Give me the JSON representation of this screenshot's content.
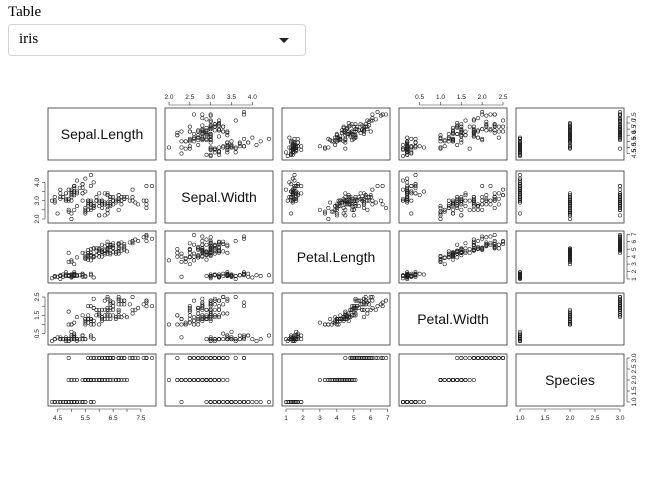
{
  "control": {
    "label": "Table",
    "selected": "iris",
    "icon": "chevron-down-icon"
  },
  "chart_data": {
    "type": "scatter-matrix",
    "variables": [
      "Sepal.Length",
      "Sepal.Width",
      "Petal.Length",
      "Petal.Width",
      "Species"
    ],
    "ranges": [
      [
        4.3,
        7.9
      ],
      [
        2.0,
        4.4
      ],
      [
        1.0,
        6.9
      ],
      [
        0.1,
        2.5
      ],
      [
        1.0,
        3.0
      ]
    ],
    "ticks": [
      [
        4.5,
        5.5,
        6.5,
        7.5
      ],
      [
        2.0,
        3.0,
        4.0
      ],
      [
        1,
        2,
        3,
        4,
        5,
        6,
        7
      ],
      [
        0.5,
        1.5,
        2.5
      ],
      [
        1.0,
        1.5,
        2.0,
        2.5,
        3.0
      ]
    ],
    "tick_labels": [
      [
        "4.5",
        "5.5",
        "6.5",
        "7.5"
      ],
      [
        "2.0",
        "3.0",
        "4.0"
      ],
      [
        "1",
        "2",
        "3",
        "4",
        "5",
        "6",
        "7"
      ],
      [
        "0.5",
        "1.5",
        "2.5"
      ],
      [
        "1.0",
        "1.5",
        "2.0",
        "2.5",
        "3.0"
      ]
    ],
    "alt_ticks": [
      [
        4.5,
        5.0,
        5.5,
        6.0,
        6.5,
        7.0,
        7.5
      ],
      [
        2.0,
        2.5,
        3.0,
        3.5,
        4.0
      ],
      [
        1,
        2,
        3,
        4,
        5,
        6,
        7
      ],
      [
        0.5,
        1.0,
        1.5,
        2.0,
        2.5
      ],
      [
        1.0,
        1.5,
        2.0,
        2.5,
        3.0
      ]
    ],
    "alt_tick_labels": [
      [
        "4.5",
        "5.0",
        "5.5",
        "6.0",
        "6.5",
        "7.0",
        "7.5"
      ],
      [
        "2.0",
        "2.5",
        "3.0",
        "3.5",
        "4.0"
      ],
      [
        "1",
        "2",
        "3",
        "4",
        "5",
        "6",
        "7"
      ],
      [
        "0.5",
        "1.0",
        "1.5",
        "2.0",
        "2.5"
      ],
      [
        "1.0",
        "1.5",
        "2.0",
        "2.5",
        "3.0"
      ]
    ],
    "data": [
      [
        5.1,
        3.5,
        1.4,
        0.2,
        1
      ],
      [
        4.9,
        3.0,
        1.4,
        0.2,
        1
      ],
      [
        4.7,
        3.2,
        1.3,
        0.2,
        1
      ],
      [
        4.6,
        3.1,
        1.5,
        0.2,
        1
      ],
      [
        5.0,
        3.6,
        1.4,
        0.2,
        1
      ],
      [
        5.4,
        3.9,
        1.7,
        0.4,
        1
      ],
      [
        4.6,
        3.4,
        1.4,
        0.3,
        1
      ],
      [
        5.0,
        3.4,
        1.5,
        0.2,
        1
      ],
      [
        4.4,
        2.9,
        1.4,
        0.2,
        1
      ],
      [
        4.9,
        3.1,
        1.5,
        0.1,
        1
      ],
      [
        5.4,
        3.7,
        1.5,
        0.2,
        1
      ],
      [
        4.8,
        3.4,
        1.6,
        0.2,
        1
      ],
      [
        4.8,
        3.0,
        1.4,
        0.1,
        1
      ],
      [
        4.3,
        3.0,
        1.1,
        0.1,
        1
      ],
      [
        5.8,
        4.0,
        1.2,
        0.2,
        1
      ],
      [
        5.7,
        4.4,
        1.5,
        0.4,
        1
      ],
      [
        5.4,
        3.9,
        1.3,
        0.4,
        1
      ],
      [
        5.1,
        3.5,
        1.4,
        0.3,
        1
      ],
      [
        5.7,
        3.8,
        1.7,
        0.3,
        1
      ],
      [
        5.1,
        3.8,
        1.5,
        0.3,
        1
      ],
      [
        5.4,
        3.4,
        1.7,
        0.2,
        1
      ],
      [
        5.1,
        3.7,
        1.5,
        0.4,
        1
      ],
      [
        4.6,
        3.6,
        1.0,
        0.2,
        1
      ],
      [
        5.1,
        3.3,
        1.7,
        0.5,
        1
      ],
      [
        4.8,
        3.4,
        1.9,
        0.2,
        1
      ],
      [
        5.0,
        3.0,
        1.6,
        0.2,
        1
      ],
      [
        5.0,
        3.4,
        1.6,
        0.4,
        1
      ],
      [
        5.2,
        3.5,
        1.5,
        0.2,
        1
      ],
      [
        5.2,
        3.4,
        1.4,
        0.2,
        1
      ],
      [
        4.7,
        3.2,
        1.6,
        0.2,
        1
      ],
      [
        4.8,
        3.1,
        1.6,
        0.2,
        1
      ],
      [
        5.4,
        3.4,
        1.5,
        0.4,
        1
      ],
      [
        5.2,
        4.1,
        1.5,
        0.1,
        1
      ],
      [
        5.5,
        4.2,
        1.4,
        0.2,
        1
      ],
      [
        4.9,
        3.1,
        1.5,
        0.2,
        1
      ],
      [
        5.0,
        3.2,
        1.2,
        0.2,
        1
      ],
      [
        5.5,
        3.5,
        1.3,
        0.2,
        1
      ],
      [
        4.9,
        3.6,
        1.4,
        0.1,
        1
      ],
      [
        4.4,
        3.0,
        1.3,
        0.2,
        1
      ],
      [
        5.1,
        3.4,
        1.5,
        0.2,
        1
      ],
      [
        5.0,
        3.5,
        1.3,
        0.3,
        1
      ],
      [
        4.5,
        2.3,
        1.3,
        0.3,
        1
      ],
      [
        4.4,
        3.2,
        1.3,
        0.2,
        1
      ],
      [
        5.0,
        3.5,
        1.6,
        0.6,
        1
      ],
      [
        5.1,
        3.8,
        1.9,
        0.4,
        1
      ],
      [
        4.8,
        3.0,
        1.4,
        0.3,
        1
      ],
      [
        5.1,
        3.8,
        1.6,
        0.2,
        1
      ],
      [
        4.6,
        3.2,
        1.4,
        0.2,
        1
      ],
      [
        5.3,
        3.7,
        1.5,
        0.2,
        1
      ],
      [
        5.0,
        3.3,
        1.4,
        0.2,
        1
      ],
      [
        7.0,
        3.2,
        4.7,
        1.4,
        2
      ],
      [
        6.4,
        3.2,
        4.5,
        1.5,
        2
      ],
      [
        6.9,
        3.1,
        4.9,
        1.5,
        2
      ],
      [
        5.5,
        2.3,
        4.0,
        1.3,
        2
      ],
      [
        6.5,
        2.8,
        4.6,
        1.5,
        2
      ],
      [
        5.7,
        2.8,
        4.5,
        1.3,
        2
      ],
      [
        6.3,
        3.3,
        4.7,
        1.6,
        2
      ],
      [
        4.9,
        2.4,
        3.3,
        1.0,
        2
      ],
      [
        6.6,
        2.9,
        4.6,
        1.3,
        2
      ],
      [
        5.2,
        2.7,
        3.9,
        1.4,
        2
      ],
      [
        5.0,
        2.0,
        3.5,
        1.0,
        2
      ],
      [
        5.9,
        3.0,
        4.2,
        1.5,
        2
      ],
      [
        6.0,
        2.2,
        4.0,
        1.0,
        2
      ],
      [
        6.1,
        2.9,
        4.7,
        1.4,
        2
      ],
      [
        5.6,
        2.9,
        3.6,
        1.3,
        2
      ],
      [
        6.7,
        3.1,
        4.4,
        1.4,
        2
      ],
      [
        5.6,
        3.0,
        4.5,
        1.5,
        2
      ],
      [
        5.8,
        2.7,
        4.1,
        1.0,
        2
      ],
      [
        6.2,
        2.2,
        4.5,
        1.5,
        2
      ],
      [
        5.6,
        2.5,
        3.9,
        1.1,
        2
      ],
      [
        5.9,
        3.2,
        4.8,
        1.8,
        2
      ],
      [
        6.1,
        2.8,
        4.0,
        1.3,
        2
      ],
      [
        6.3,
        2.5,
        4.9,
        1.5,
        2
      ],
      [
        6.1,
        2.8,
        4.7,
        1.2,
        2
      ],
      [
        6.4,
        2.9,
        4.3,
        1.3,
        2
      ],
      [
        6.6,
        3.0,
        4.4,
        1.4,
        2
      ],
      [
        6.8,
        2.8,
        4.8,
        1.4,
        2
      ],
      [
        6.7,
        3.0,
        5.0,
        1.7,
        2
      ],
      [
        6.0,
        2.9,
        4.5,
        1.5,
        2
      ],
      [
        5.7,
        2.6,
        3.5,
        1.0,
        2
      ],
      [
        5.5,
        2.4,
        3.8,
        1.1,
        2
      ],
      [
        5.5,
        2.4,
        3.7,
        1.0,
        2
      ],
      [
        5.8,
        2.7,
        3.9,
        1.2,
        2
      ],
      [
        6.0,
        2.7,
        5.1,
        1.6,
        2
      ],
      [
        5.4,
        3.0,
        4.5,
        1.5,
        2
      ],
      [
        6.0,
        3.4,
        4.5,
        1.6,
        2
      ],
      [
        6.7,
        3.1,
        4.7,
        1.5,
        2
      ],
      [
        6.3,
        2.3,
        4.4,
        1.3,
        2
      ],
      [
        5.6,
        3.0,
        4.1,
        1.3,
        2
      ],
      [
        5.5,
        2.5,
        4.0,
        1.3,
        2
      ],
      [
        5.5,
        2.6,
        4.4,
        1.2,
        2
      ],
      [
        6.1,
        3.0,
        4.6,
        1.4,
        2
      ],
      [
        5.8,
        2.6,
        4.0,
        1.2,
        2
      ],
      [
        5.0,
        2.3,
        3.3,
        1.0,
        2
      ],
      [
        5.6,
        2.7,
        4.2,
        1.3,
        2
      ],
      [
        5.7,
        3.0,
        4.2,
        1.2,
        2
      ],
      [
        5.7,
        2.9,
        4.2,
        1.3,
        2
      ],
      [
        6.2,
        2.9,
        4.3,
        1.3,
        2
      ],
      [
        5.1,
        2.5,
        3.0,
        1.1,
        2
      ],
      [
        5.7,
        2.8,
        4.1,
        1.3,
        2
      ],
      [
        6.3,
        3.3,
        6.0,
        2.5,
        3
      ],
      [
        5.8,
        2.7,
        5.1,
        1.9,
        3
      ],
      [
        7.1,
        3.0,
        5.9,
        2.1,
        3
      ],
      [
        6.3,
        2.9,
        5.6,
        1.8,
        3
      ],
      [
        6.5,
        3.0,
        5.8,
        2.2,
        3
      ],
      [
        7.6,
        3.0,
        6.6,
        2.1,
        3
      ],
      [
        4.9,
        2.5,
        4.5,
        1.7,
        3
      ],
      [
        7.3,
        2.9,
        6.3,
        1.8,
        3
      ],
      [
        6.7,
        2.5,
        5.8,
        1.8,
        3
      ],
      [
        7.2,
        3.6,
        6.1,
        2.5,
        3
      ],
      [
        6.5,
        3.2,
        5.1,
        2.0,
        3
      ],
      [
        6.4,
        2.7,
        5.3,
        1.9,
        3
      ],
      [
        6.8,
        3.0,
        5.5,
        2.1,
        3
      ],
      [
        5.7,
        2.5,
        5.0,
        2.0,
        3
      ],
      [
        5.8,
        2.8,
        5.1,
        2.4,
        3
      ],
      [
        6.4,
        3.2,
        5.3,
        2.3,
        3
      ],
      [
        6.5,
        3.0,
        5.5,
        1.8,
        3
      ],
      [
        7.7,
        3.8,
        6.7,
        2.2,
        3
      ],
      [
        7.7,
        2.6,
        6.9,
        2.3,
        3
      ],
      [
        6.0,
        2.2,
        5.0,
        1.5,
        3
      ],
      [
        6.9,
        3.2,
        5.7,
        2.3,
        3
      ],
      [
        5.6,
        2.8,
        4.9,
        2.0,
        3
      ],
      [
        7.7,
        2.8,
        6.7,
        2.0,
        3
      ],
      [
        6.3,
        2.7,
        4.9,
        1.8,
        3
      ],
      [
        6.7,
        3.3,
        5.7,
        2.1,
        3
      ],
      [
        7.2,
        3.2,
        6.0,
        1.8,
        3
      ],
      [
        6.2,
        2.8,
        4.8,
        1.8,
        3
      ],
      [
        6.1,
        3.0,
        4.9,
        1.8,
        3
      ],
      [
        6.4,
        2.8,
        5.6,
        2.1,
        3
      ],
      [
        7.2,
        3.0,
        5.8,
        1.6,
        3
      ],
      [
        7.4,
        2.8,
        6.1,
        1.9,
        3
      ],
      [
        7.9,
        3.8,
        6.4,
        2.0,
        3
      ],
      [
        6.4,
        2.8,
        5.6,
        2.2,
        3
      ],
      [
        6.3,
        2.8,
        5.1,
        1.5,
        3
      ],
      [
        6.1,
        2.6,
        5.6,
        1.4,
        3
      ],
      [
        7.7,
        3.0,
        6.1,
        2.3,
        3
      ],
      [
        6.3,
        3.4,
        5.6,
        2.4,
        3
      ],
      [
        6.4,
        3.1,
        5.5,
        1.8,
        3
      ],
      [
        6.0,
        3.0,
        4.8,
        1.8,
        3
      ],
      [
        6.9,
        3.1,
        5.4,
        2.1,
        3
      ],
      [
        6.7,
        3.1,
        5.6,
        2.4,
        3
      ],
      [
        6.9,
        3.1,
        5.1,
        2.3,
        3
      ],
      [
        5.8,
        2.7,
        5.1,
        1.9,
        3
      ],
      [
        6.8,
        3.2,
        5.9,
        2.3,
        3
      ],
      [
        6.7,
        3.3,
        5.7,
        2.5,
        3
      ],
      [
        6.7,
        3.0,
        5.2,
        2.3,
        3
      ],
      [
        6.3,
        2.5,
        5.0,
        1.9,
        3
      ],
      [
        6.5,
        3.0,
        5.2,
        2.0,
        3
      ],
      [
        6.2,
        3.4,
        5.4,
        2.3,
        3
      ],
      [
        5.9,
        3.0,
        5.1,
        1.8,
        3
      ]
    ]
  }
}
